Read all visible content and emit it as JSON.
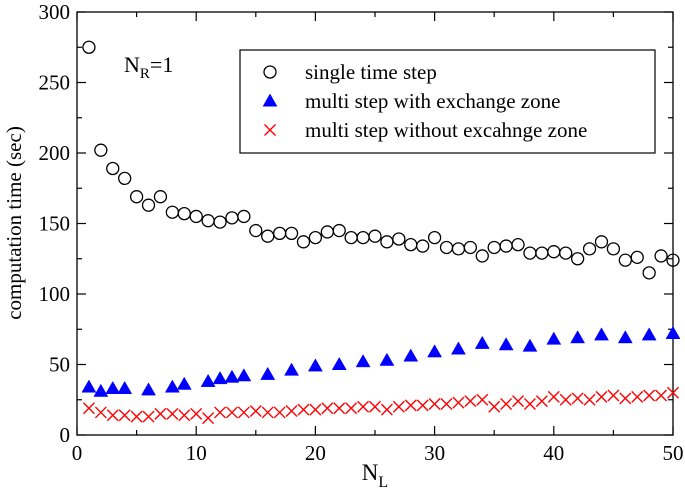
{
  "chart_data": {
    "type": "scatter",
    "title": "",
    "xlabel": {
      "main": "N",
      "sub": "L"
    },
    "ylabel": "computation time (sec)",
    "annotation": {
      "main": "N",
      "sub": "R",
      "rest": "=1"
    },
    "xlim": [
      0,
      50
    ],
    "ylim": [
      0,
      300
    ],
    "xticks": [
      0,
      10,
      20,
      30,
      40,
      50
    ],
    "yticks": [
      0,
      50,
      100,
      150,
      200,
      250,
      300
    ],
    "legend_position": "top-right",
    "x": [
      1,
      2,
      3,
      4,
      5,
      6,
      7,
      8,
      9,
      10,
      11,
      12,
      13,
      14,
      15,
      16,
      17,
      18,
      19,
      20,
      21,
      22,
      23,
      24,
      25,
      26,
      27,
      28,
      29,
      30,
      31,
      32,
      33,
      34,
      35,
      36,
      37,
      38,
      39,
      40,
      41,
      42,
      43,
      44,
      45,
      46,
      47,
      48,
      49,
      50
    ],
    "series": [
      {
        "name": "single time step",
        "marker": "circle",
        "color": "#000000",
        "values": [
          275,
          202,
          189,
          182,
          169,
          163,
          169,
          158,
          157,
          155,
          152,
          151,
          154,
          155,
          145,
          141,
          143,
          143,
          137,
          140,
          144,
          145,
          140,
          140,
          141,
          137,
          139,
          135,
          134,
          140,
          133,
          132,
          133,
          127,
          133,
          134,
          135,
          129,
          129,
          130,
          129,
          125,
          132,
          137,
          132,
          124,
          126,
          115,
          127,
          124
        ]
      },
      {
        "name": "multi step with exchange zone",
        "marker": "triangle",
        "color": "#0000ff",
        "values": [
          34,
          31,
          33,
          33,
          null,
          32,
          null,
          34,
          36,
          null,
          38,
          40,
          41,
          42,
          null,
          43,
          null,
          46,
          null,
          49,
          null,
          50,
          null,
          52,
          null,
          53,
          null,
          56,
          null,
          59,
          null,
          61,
          null,
          65,
          null,
          64,
          null,
          63,
          null,
          68,
          null,
          69,
          null,
          71,
          null,
          69,
          null,
          71,
          null,
          72
        ]
      },
      {
        "name": "multi step without excahnge zone",
        "marker": "cross",
        "color": "#ff0000",
        "values": [
          19,
          16,
          14,
          14,
          13,
          13,
          15,
          15,
          14,
          15,
          12,
          16,
          16,
          16,
          17,
          16,
          16,
          17,
          18,
          18,
          19,
          19,
          19,
          20,
          20,
          18,
          20,
          21,
          21,
          22,
          22,
          23,
          24,
          25,
          20,
          22,
          24,
          22,
          24,
          27,
          25,
          26,
          25,
          27,
          28,
          26,
          27,
          28,
          28,
          30
        ]
      }
    ]
  }
}
